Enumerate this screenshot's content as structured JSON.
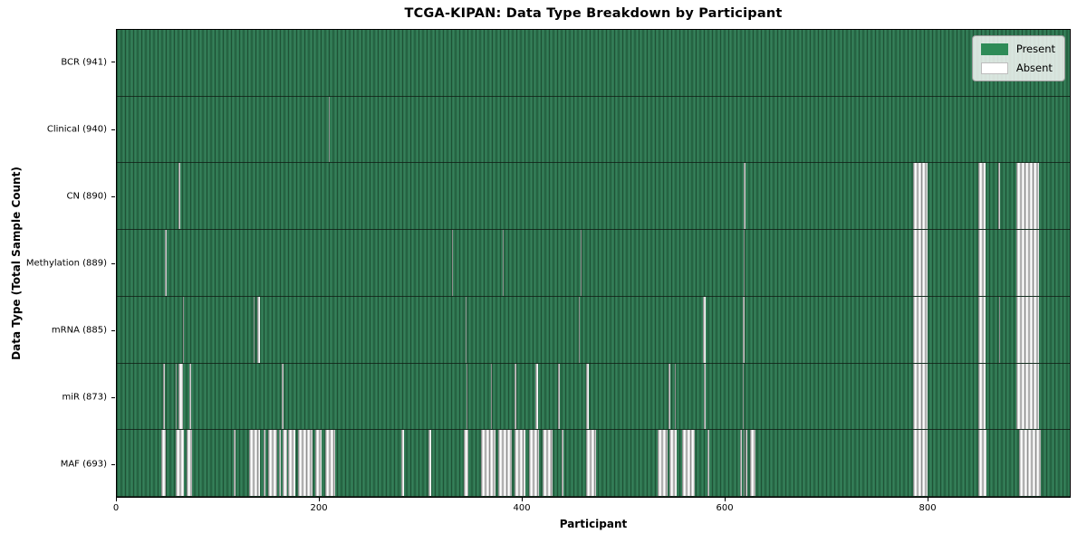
{
  "figure": {
    "title": "TCGA-KIPAN: Data Type Breakdown by Participant"
  },
  "axes": {
    "x_label": "Participant",
    "y_label": "Data Type (Total Sample Count)"
  },
  "legend": {
    "items": [
      {
        "label": "Present",
        "color": "#2e8b57",
        "border": "#2e8b57"
      },
      {
        "label": "Absent",
        "color": "#ffffff",
        "border": "#bdbdbd"
      }
    ]
  },
  "chart_data": {
    "type": "heatmap",
    "title": "TCGA-KIPAN: Data Type Breakdown by Participant",
    "xlabel": "Participant",
    "ylabel": "Data Type (Total Sample Count)",
    "x_range": [
      0,
      941
    ],
    "x_ticks": [
      0,
      200,
      400,
      600,
      800
    ],
    "value_domain": [
      "Present",
      "Absent"
    ],
    "colors": {
      "present": "#2e8b57",
      "absent": "#ffffff"
    },
    "legend_position": "upper right",
    "grid": false,
    "rows": [
      {
        "label": "BCR (941)",
        "data_type": "BCR",
        "total_sample_count": 941,
        "absent_intervals": []
      },
      {
        "label": "Clinical (940)",
        "data_type": "Clinical",
        "total_sample_count": 940,
        "absent_intervals": [
          [
            209,
            210
          ]
        ]
      },
      {
        "label": "CN (890)",
        "data_type": "CN",
        "total_sample_count": 890,
        "absent_intervals": [
          [
            61,
            63
          ],
          [
            619,
            621
          ],
          [
            786,
            801
          ],
          [
            851,
            858
          ],
          [
            870,
            872
          ],
          [
            888,
            911
          ]
        ]
      },
      {
        "label": "Methylation (889)",
        "data_type": "Methylation",
        "total_sample_count": 889,
        "absent_intervals": [
          [
            47,
            49
          ],
          [
            331,
            332
          ],
          [
            381,
            382
          ],
          [
            458,
            459
          ],
          [
            619,
            620
          ],
          [
            786,
            801
          ],
          [
            851,
            858
          ],
          [
            888,
            911
          ]
        ]
      },
      {
        "label": "mRNA (885)",
        "data_type": "mRNA",
        "total_sample_count": 885,
        "absent_intervals": [
          [
            65,
            66
          ],
          [
            135,
            136
          ],
          [
            139,
            141
          ],
          [
            344,
            345
          ],
          [
            456,
            457
          ],
          [
            579,
            581
          ],
          [
            618,
            620
          ],
          [
            786,
            801
          ],
          [
            851,
            858
          ],
          [
            871,
            872
          ],
          [
            888,
            911
          ]
        ]
      },
      {
        "label": "miR (873)",
        "data_type": "miR",
        "total_sample_count": 873,
        "absent_intervals": [
          [
            46,
            47
          ],
          [
            58,
            59
          ],
          [
            61,
            65
          ],
          [
            72,
            73
          ],
          [
            163,
            164
          ],
          [
            345,
            346
          ],
          [
            369,
            370
          ],
          [
            393,
            394
          ],
          [
            413,
            416
          ],
          [
            436,
            437
          ],
          [
            463,
            466
          ],
          [
            545,
            546
          ],
          [
            551,
            552
          ],
          [
            580,
            581
          ],
          [
            618,
            619
          ],
          [
            786,
            801
          ],
          [
            851,
            858
          ],
          [
            888,
            911
          ]
        ]
      },
      {
        "label": "MAF (693)",
        "data_type": "MAF",
        "total_sample_count": 693,
        "absent_intervals": [
          [
            44,
            48
          ],
          [
            58,
            66
          ],
          [
            69,
            74
          ],
          [
            115,
            117
          ],
          [
            131,
            141
          ],
          [
            145,
            147
          ],
          [
            149,
            158
          ],
          [
            160,
            162
          ],
          [
            164,
            168
          ],
          [
            169,
            176
          ],
          [
            179,
            193
          ],
          [
            196,
            202
          ],
          [
            206,
            216
          ],
          [
            281,
            284
          ],
          [
            308,
            310
          ],
          [
            343,
            347
          ],
          [
            360,
            374
          ],
          [
            377,
            390
          ],
          [
            393,
            403
          ],
          [
            407,
            417
          ],
          [
            420,
            430
          ],
          [
            439,
            441
          ],
          [
            463,
            473
          ],
          [
            534,
            544
          ],
          [
            546,
            553
          ],
          [
            558,
            571
          ],
          [
            583,
            585
          ],
          [
            615,
            617
          ],
          [
            619,
            620
          ],
          [
            621,
            623
          ],
          [
            625,
            631
          ],
          [
            786,
            801
          ],
          [
            851,
            859
          ],
          [
            891,
            912
          ]
        ]
      }
    ]
  }
}
